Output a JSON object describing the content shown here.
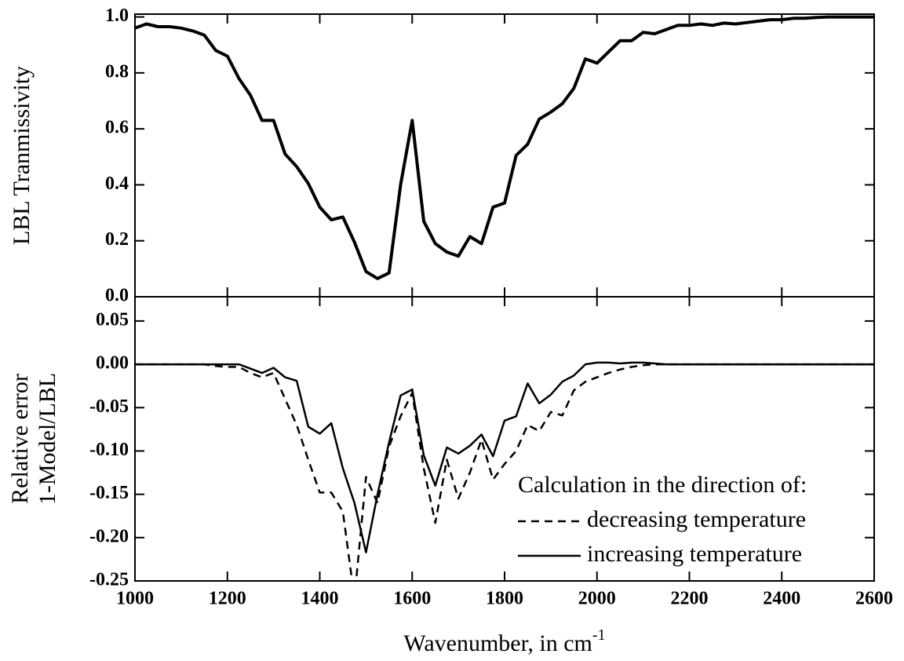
{
  "chart_data": [
    {
      "type": "line",
      "ylabel": "LBL Tranmissivity",
      "x": [
        1000,
        1025,
        1050,
        1075,
        1100,
        1125,
        1150,
        1175,
        1200,
        1225,
        1250,
        1275,
        1300,
        1325,
        1350,
        1375,
        1400,
        1425,
        1450,
        1475,
        1500,
        1525,
        1550,
        1575,
        1600,
        1625,
        1650,
        1675,
        1700,
        1725,
        1750,
        1775,
        1800,
        1825,
        1850,
        1875,
        1900,
        1925,
        1950,
        1975,
        2000,
        2025,
        2050,
        2075,
        2100,
        2125,
        2150,
        2175,
        2200,
        2225,
        2250,
        2275,
        2300,
        2325,
        2350,
        2375,
        2400,
        2425,
        2450,
        2475,
        2500,
        2525,
        2550,
        2575,
        2600
      ],
      "values": [
        0.96,
        0.975,
        0.965,
        0.965,
        0.96,
        0.95,
        0.935,
        0.88,
        0.86,
        0.78,
        0.72,
        0.63,
        0.63,
        0.51,
        0.465,
        0.405,
        0.32,
        0.275,
        0.285,
        0.195,
        0.09,
        0.065,
        0.085,
        0.4,
        0.63,
        0.27,
        0.19,
        0.16,
        0.145,
        0.215,
        0.19,
        0.32,
        0.335,
        0.505,
        0.545,
        0.635,
        0.66,
        0.69,
        0.745,
        0.85,
        0.835,
        0.875,
        0.915,
        0.915,
        0.945,
        0.94,
        0.955,
        0.97,
        0.97,
        0.975,
        0.97,
        0.978,
        0.975,
        0.98,
        0.985,
        0.99,
        0.99,
        0.995,
        0.995,
        0.998,
        1.0,
        1.0,
        1.0,
        1.0,
        1.0
      ],
      "color": "#000000",
      "xlim": [
        1000,
        2600
      ],
      "xticks": [
        1000,
        1200,
        1400,
        1600,
        1800,
        2000,
        2200,
        2400,
        2600
      ],
      "ylim": [
        0,
        1.01
      ],
      "yticks": [
        {
          "value": 0,
          "label": "0.0"
        },
        0.2,
        0.4,
        0.6,
        0.8,
        {
          "value": 1,
          "label": "1.0"
        }
      ]
    },
    {
      "type": "line",
      "ylabel": [
        "Relative error",
        "1-Model/LBL"
      ],
      "xlabel": {
        "text": "Wavenumber, in cm",
        "sup": "-1"
      },
      "x": [
        1000,
        1025,
        1050,
        1075,
        1100,
        1125,
        1150,
        1175,
        1200,
        1225,
        1250,
        1275,
        1300,
        1325,
        1350,
        1375,
        1400,
        1425,
        1450,
        1475,
        1500,
        1525,
        1550,
        1575,
        1600,
        1625,
        1650,
        1675,
        1700,
        1725,
        1750,
        1775,
        1800,
        1825,
        1850,
        1875,
        1900,
        1925,
        1950,
        1975,
        2000,
        2025,
        2050,
        2075,
        2100,
        2125,
        2150,
        2175,
        2200,
        2225,
        2250,
        2275,
        2300,
        2325,
        2350,
        2375,
        2400,
        2425,
        2450,
        2475,
        2500,
        2525,
        2550,
        2575,
        2600
      ],
      "legend_title": "Calculation in the direction of:",
      "legend": "lower right",
      "series": [
        {
          "name": "decreasing temperature",
          "color": "#000000",
          "style": "dashed",
          "values": [
            0,
            0,
            0,
            0,
            0,
            0,
            0,
            -0.002,
            -0.003,
            -0.003,
            -0.01,
            -0.015,
            -0.01,
            -0.04,
            -0.07,
            -0.11,
            -0.148,
            -0.148,
            -0.17,
            -0.27,
            -0.13,
            -0.16,
            -0.095,
            -0.06,
            -0.033,
            -0.12,
            -0.183,
            -0.11,
            -0.155,
            -0.125,
            -0.087,
            -0.133,
            -0.115,
            -0.1,
            -0.07,
            -0.077,
            -0.055,
            -0.059,
            -0.03,
            -0.02,
            -0.015,
            -0.01,
            -0.006,
            -0.003,
            -0.001,
            0,
            0,
            0,
            0,
            0,
            0,
            0,
            0,
            0,
            0,
            0,
            0,
            0,
            0,
            0,
            0,
            0,
            0,
            0,
            0
          ]
        },
        {
          "name": "increasing temperature",
          "color": "#000000",
          "style": "solid",
          "values": [
            0,
            0,
            0,
            0,
            0,
            0,
            0,
            0,
            0,
            0,
            -0.005,
            -0.01,
            -0.004,
            -0.015,
            -0.019,
            -0.072,
            -0.08,
            -0.068,
            -0.12,
            -0.16,
            -0.217,
            -0.15,
            -0.09,
            -0.036,
            -0.029,
            -0.105,
            -0.14,
            -0.096,
            -0.103,
            -0.094,
            -0.081,
            -0.106,
            -0.065,
            -0.06,
            -0.022,
            -0.045,
            -0.035,
            -0.02,
            -0.013,
            0,
            0.002,
            0.002,
            0.001,
            0.002,
            0.002,
            0.001,
            0,
            0,
            0,
            0,
            0,
            0,
            0,
            0,
            0,
            0,
            0,
            0,
            0,
            0,
            0,
            0,
            0,
            0,
            0
          ]
        }
      ],
      "xlim": [
        1000,
        2600
      ],
      "xticks": [
        1000,
        1200,
        1400,
        1600,
        1800,
        2000,
        2200,
        2400,
        2600
      ],
      "ylim": [
        -0.25,
        0.078
      ],
      "yticks": [
        -0.25,
        {
          "value": -0.2,
          "label": "-0.20"
        },
        -0.15,
        {
          "value": -0.1,
          "label": "-0.10"
        },
        -0.05,
        {
          "value": 0,
          "label": "0.00"
        },
        0.05
      ]
    }
  ]
}
